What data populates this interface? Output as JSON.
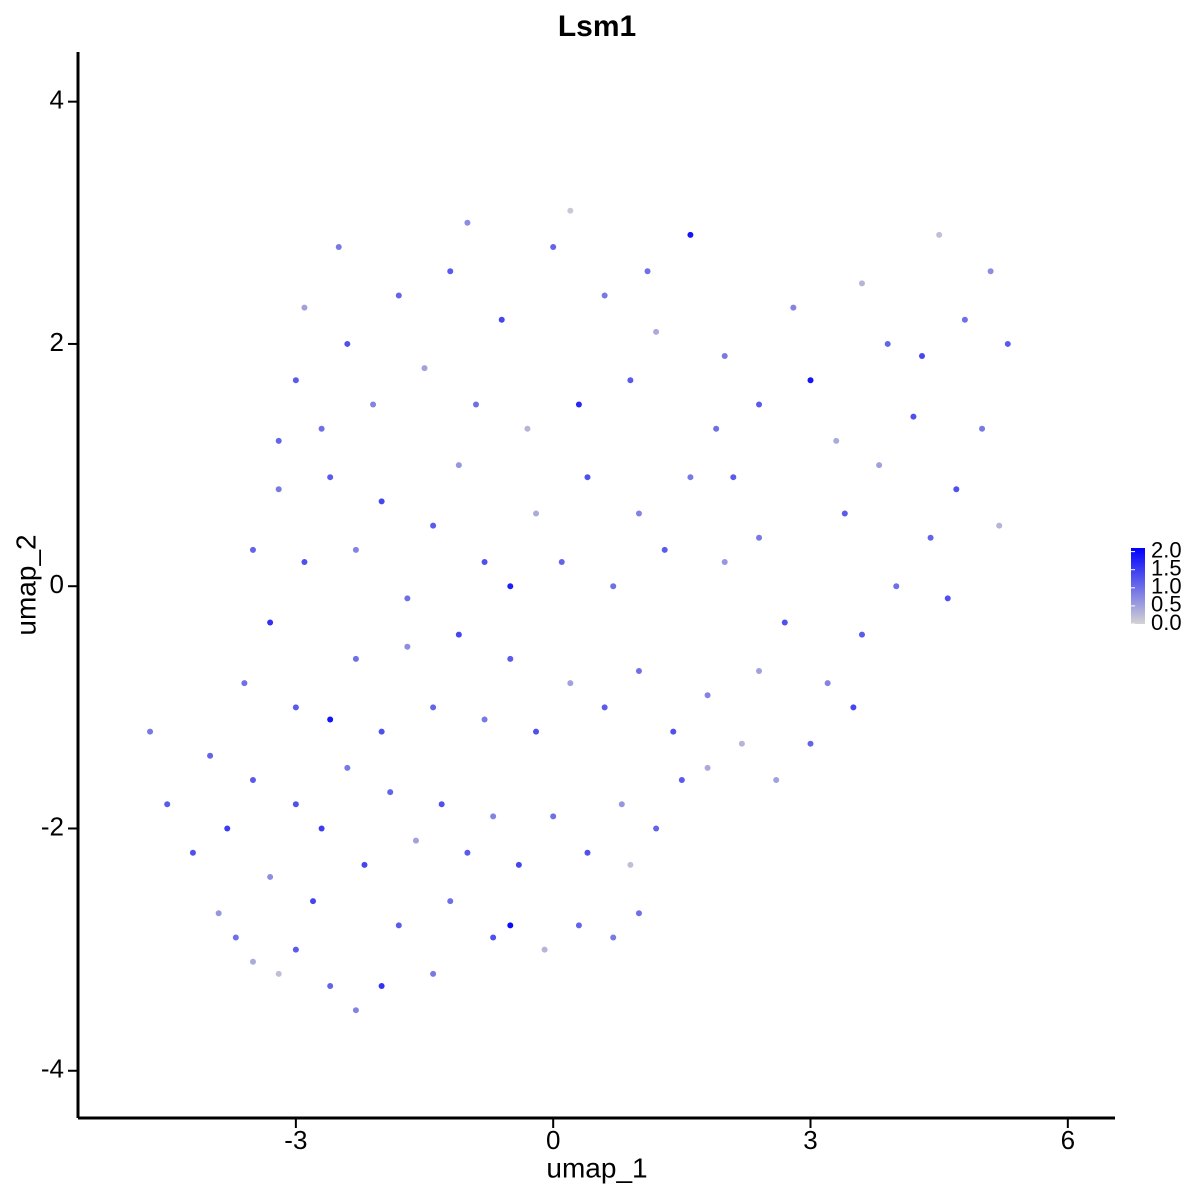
{
  "chart_data": {
    "type": "scatter",
    "title": "Lsm1",
    "x_label": "umap_1",
    "y_label": "umap_2",
    "x": [
      -4.7,
      -4.5,
      -4.2,
      -4.0,
      -3.9,
      -3.7,
      -3.5,
      -3.2,
      -3.0,
      -2.8,
      -2.6,
      -2.3,
      -2.0,
      -1.8,
      -1.4,
      -1.2,
      -0.7,
      -0.5,
      -0.1,
      0.3,
      0.7,
      1.0,
      0.9,
      -3.8,
      -3.5,
      -3.3,
      -3.0,
      -2.7,
      -2.4,
      -2.2,
      -1.9,
      -1.6,
      -1.3,
      -1.0,
      -0.7,
      -0.4,
      0.0,
      0.4,
      0.8,
      1.2,
      1.5,
      1.8,
      -3.6,
      -3.3,
      -3.0,
      -2.6,
      -2.3,
      -2.0,
      -1.7,
      -1.4,
      -1.1,
      -0.8,
      -0.5,
      -0.2,
      0.2,
      0.6,
      1.0,
      1.4,
      1.8,
      2.2,
      2.6,
      -3.5,
      -3.2,
      -2.9,
      -2.6,
      -2.3,
      -2.0,
      -1.7,
      -1.4,
      -1.1,
      -0.8,
      -0.5,
      -0.2,
      0.1,
      0.4,
      0.7,
      1.0,
      1.3,
      1.6,
      -3.0,
      -2.7,
      -2.4,
      -2.1,
      -1.8,
      -1.5,
      -1.2,
      -0.9,
      -0.6,
      -0.3,
      0.0,
      0.3,
      0.6,
      0.9,
      1.2,
      1.6,
      -2.5,
      -1.0,
      0.2,
      1.1,
      -2.9,
      -3.2,
      2.0,
      2.4,
      2.8,
      3.0,
      3.3,
      3.6,
      3.9,
      4.2,
      4.5,
      4.8,
      5.1,
      5.3,
      5.0,
      4.7,
      4.4,
      4.0,
      3.6,
      3.2,
      3.0,
      2.7,
      2.4,
      2.1,
      2.4,
      3.4,
      3.8,
      4.3,
      5.2,
      2.0,
      1.9,
      3.5,
      4.6
    ],
    "y": [
      -1.2,
      -1.8,
      -2.2,
      -1.4,
      -2.7,
      -2.9,
      -3.1,
      -3.2,
      -3.0,
      -2.6,
      -3.3,
      -3.5,
      -3.3,
      -2.8,
      -3.2,
      -2.6,
      -2.9,
      -2.8,
      -3.0,
      -2.8,
      -2.9,
      -2.7,
      -2.3,
      -2.0,
      -1.6,
      -2.4,
      -1.8,
      -2.0,
      -1.5,
      -2.3,
      -1.7,
      -2.1,
      -1.8,
      -2.2,
      -1.9,
      -2.3,
      -1.9,
      -2.2,
      -1.8,
      -2.0,
      -1.6,
      -1.5,
      -0.8,
      -0.3,
      -1.0,
      -1.1,
      -0.6,
      -1.2,
      -0.5,
      -1.0,
      -0.4,
      -1.1,
      -0.6,
      -1.2,
      -0.8,
      -1.0,
      -0.7,
      -1.2,
      -0.9,
      -1.3,
      -1.6,
      0.3,
      0.8,
      0.2,
      0.9,
      0.3,
      0.7,
      -0.1,
      0.5,
      1.0,
      0.2,
      0.0,
      0.6,
      0.2,
      0.9,
      0.0,
      0.6,
      0.3,
      0.9,
      1.7,
      1.3,
      2.0,
      1.5,
      2.4,
      1.8,
      2.6,
      1.5,
      2.2,
      1.3,
      2.8,
      1.5,
      2.4,
      1.7,
      2.1,
      2.9,
      2.8,
      3.0,
      3.1,
      2.6,
      2.3,
      1.2,
      1.9,
      1.5,
      2.3,
      1.7,
      1.2,
      2.5,
      2.0,
      1.4,
      2.9,
      2.2,
      2.6,
      2.0,
      1.3,
      0.8,
      0.4,
      0.0,
      -0.4,
      -0.8,
      -1.3,
      -0.3,
      0.4,
      0.9,
      -0.7,
      0.6,
      1.0,
      1.9,
      0.5,
      0.2,
      1.3,
      -1.0,
      -0.1
    ],
    "values": [
      0.9,
      1.2,
      1.3,
      1.1,
      0.6,
      1.0,
      0.4,
      0.2,
      1.2,
      1.4,
      1.1,
      0.8,
      1.6,
      1.2,
      0.9,
      1.0,
      1.3,
      2.0,
      0.3,
      1.1,
      0.9,
      1.0,
      0.2,
      1.5,
      1.2,
      0.7,
      1.3,
      1.5,
      0.9,
      1.4,
      1.1,
      0.5,
      1.3,
      1.2,
      0.8,
      1.4,
      1.0,
      1.3,
      0.6,
      1.1,
      1.2,
      0.4,
      1.0,
      1.6,
      1.2,
      1.9,
      1.0,
      1.3,
      0.7,
      1.1,
      1.4,
      0.9,
      1.2,
      1.3,
      0.5,
      1.2,
      1.0,
      1.3,
      0.8,
      0.3,
      0.5,
      1.1,
      0.9,
      1.3,
      1.2,
      0.8,
      1.4,
      1.0,
      1.2,
      0.6,
      1.3,
      1.8,
      0.4,
      1.1,
      1.3,
      1.0,
      0.8,
      1.2,
      0.9,
      1.2,
      1.0,
      1.3,
      0.8,
      1.1,
      0.5,
      1.2,
      1.0,
      1.4,
      0.3,
      1.1,
      1.7,
      0.9,
      1.2,
      0.4,
      1.9,
      0.9,
      0.7,
      0.1,
      1.0,
      0.5,
      1.1,
      0.9,
      1.2,
      0.8,
      1.9,
      0.4,
      0.3,
      1.1,
      1.3,
      0.2,
      1.0,
      0.7,
      1.2,
      0.9,
      1.3,
      1.1,
      1.0,
      1.2,
      0.8,
      1.1,
      1.3,
      0.9,
      1.2,
      0.5,
      1.2,
      0.5,
      1.4,
      0.3,
      0.6,
      1.0,
      1.4,
      1.3
    ],
    "xlim": [
      -5.54,
      6.55
    ],
    "ylim": [
      -4.39,
      4.41
    ],
    "xticks": [
      -3,
      0,
      3,
      6
    ],
    "yticks": [
      -4,
      -2,
      0,
      2,
      4
    ],
    "color_low": "#d3d3d3",
    "color_high": "#0000ff",
    "colorlim": [
      0,
      2.1
    ],
    "colorticks": [
      {
        "value": 0,
        "label": "0.0"
      },
      {
        "value": 0.5,
        "label": "0.5"
      },
      {
        "value": 1,
        "label": "1.0"
      },
      {
        "value": 1.5,
        "label": "1.5"
      },
      {
        "value": 2,
        "label": "2.0"
      }
    ]
  }
}
